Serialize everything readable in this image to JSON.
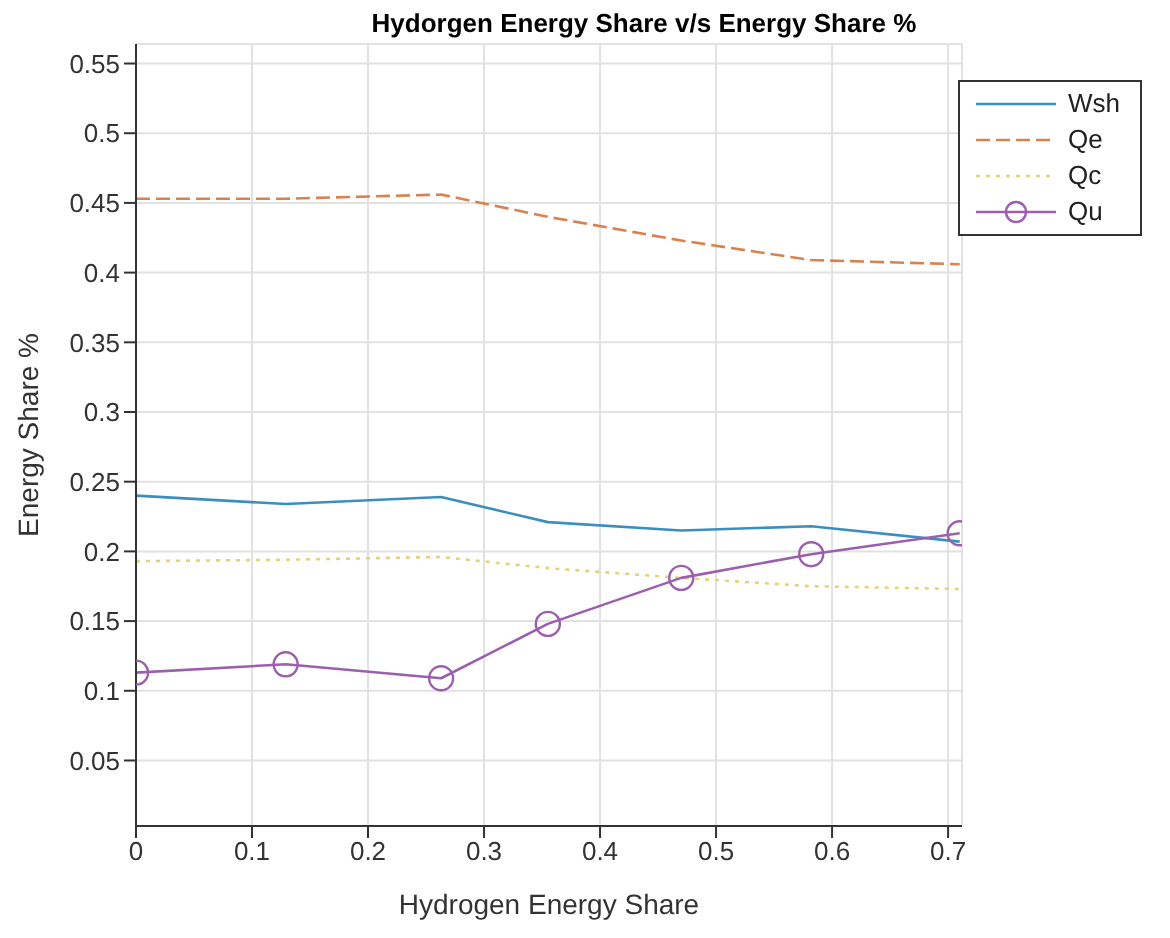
{
  "chart_data": {
    "type": "line",
    "title": "Hydorgen Energy Share v/s Energy Share %",
    "xlabel": "Hydrogen Energy Share",
    "ylabel": "Energy Share %",
    "x": [
      0,
      0.129,
      0.263,
      0.355,
      0.47,
      0.582,
      0.71
    ],
    "series": [
      {
        "name": "Wsh",
        "color": "#3b8fc0",
        "line_style": "solid",
        "marker": "none",
        "values": [
          0.24,
          0.234,
          0.239,
          0.221,
          0.215,
          0.218,
          0.207
        ]
      },
      {
        "name": "Qe",
        "color": "#d9824f",
        "line_style": "dashed",
        "marker": "none",
        "values": [
          0.453,
          0.453,
          0.456,
          0.44,
          0.423,
          0.409,
          0.406
        ]
      },
      {
        "name": "Qc",
        "color": "#e3d37a",
        "line_style": "dotted",
        "marker": "none",
        "values": [
          0.193,
          0.194,
          0.196,
          0.188,
          0.181,
          0.175,
          0.173
        ]
      },
      {
        "name": "Qu",
        "color": "#9c5fae",
        "line_style": "solid",
        "marker": "circle",
        "values": [
          0.113,
          0.119,
          0.109,
          0.148,
          0.181,
          0.198,
          0.213
        ]
      }
    ],
    "xlim": [
      0,
      0.712
    ],
    "xticks": [
      0,
      0.1,
      0.2,
      0.3,
      0.4,
      0.5,
      0.6,
      {
        "value": 0.7,
        "label": "0.7"
      }
    ],
    "ylim": [
      0.003,
      0.564
    ],
    "yticks": [
      0.05,
      0.1,
      0.15,
      0.2,
      0.25,
      0.3,
      0.35,
      0.4,
      0.45,
      0.5,
      0.55
    ],
    "grid": true,
    "legend": "top right"
  }
}
